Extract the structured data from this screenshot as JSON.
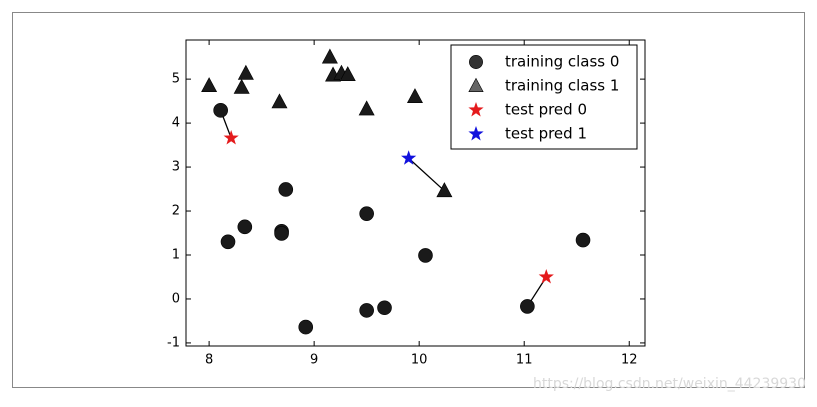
{
  "chart_data": {
    "type": "scatter",
    "series": [
      {
        "name": "training class 0",
        "color": "#1a1a1a",
        "marker": "circle",
        "x": [
          8.11,
          8.18,
          8.34,
          8.69,
          8.69,
          8.73,
          8.92,
          9.5,
          9.67,
          9.5,
          10.06,
          11.03,
          11.56
        ],
        "values": [
          4.29,
          1.3,
          1.64,
          1.54,
          1.49,
          2.49,
          -0.64,
          -0.26,
          -0.2,
          1.94,
          0.99,
          -0.17,
          1.34
        ]
      },
      {
        "name": "training class 1",
        "color": "#1a1a1a",
        "marker": "triangle",
        "x": [
          8.0,
          8.31,
          8.35,
          8.67,
          9.15,
          9.18,
          9.26,
          9.32,
          9.5,
          9.96,
          10.24
        ],
        "values": [
          4.85,
          4.81,
          5.13,
          4.48,
          5.5,
          5.09,
          5.13,
          5.1,
          4.32,
          4.6,
          2.46
        ]
      },
      {
        "name": "test pred 0",
        "color": "#e41a1c",
        "marker": "star",
        "x": [
          8.21,
          11.21
        ],
        "values": [
          3.66,
          0.5
        ]
      },
      {
        "name": "test pred 1",
        "color": "#1111dd",
        "marker": "star",
        "x": [
          9.9
        ],
        "values": [
          3.2
        ]
      }
    ],
    "xlim": [
      7.78,
      12.15
    ],
    "ylim": [
      -1.07,
      5.89
    ],
    "xticks": [
      8,
      9,
      10,
      11,
      12
    ],
    "yticks": [
      -1,
      0,
      1,
      2,
      3,
      4,
      5
    ],
    "legend": "upper right",
    "grid": false,
    "watermark": "https://blog.csdn.net/weixin_44239930"
  }
}
